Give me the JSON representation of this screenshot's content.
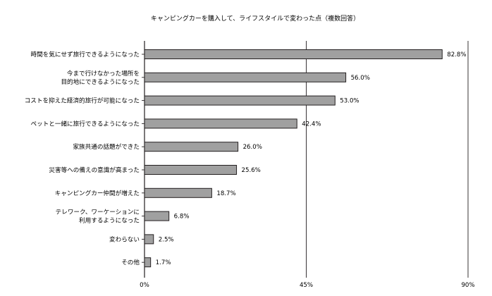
{
  "chart_data": {
    "type": "bar",
    "orientation": "horizontal",
    "title": "キャンピングカーを購入して、ライフスタイルで変わった点（複数回答）",
    "categories": [
      [
        "時間を気にせず旅行できるようになった"
      ],
      [
        "今まで行けなかった場所を",
        "目的地にできるようになった"
      ],
      [
        "コストを抑えた経済的旅行が可能になった"
      ],
      [
        "ペットと一緒に旅行できるようになった"
      ],
      [
        "家族共通の話題ができた"
      ],
      [
        "災害等への備えの意識が高まった"
      ],
      [
        "キャンピングカー仲間が増えた"
      ],
      [
        "テレワーク、ワーケーションに",
        "利用するようになった"
      ],
      [
        "変わらない"
      ],
      [
        "その他"
      ]
    ],
    "values": [
      82.8,
      56.0,
      53.0,
      42.4,
      26.0,
      25.6,
      18.7,
      6.8,
      2.5,
      1.7
    ],
    "value_labels": [
      "82.8%",
      "56.0%",
      "53.0%",
      "42.4%",
      "26.0%",
      "25.6%",
      "18.7%",
      "6.8%",
      "2.5%",
      "1.7%"
    ],
    "xlim": [
      0,
      90
    ],
    "xticks": [
      0,
      45,
      90
    ],
    "xtick_labels": [
      "0%",
      "45%",
      "90%"
    ],
    "xlabel": "",
    "ylabel": "",
    "grid": true,
    "legend": "none",
    "bar_color": "#a0a0a0",
    "bar_edge_color": "#231f20",
    "axis_color": "#231f20"
  }
}
